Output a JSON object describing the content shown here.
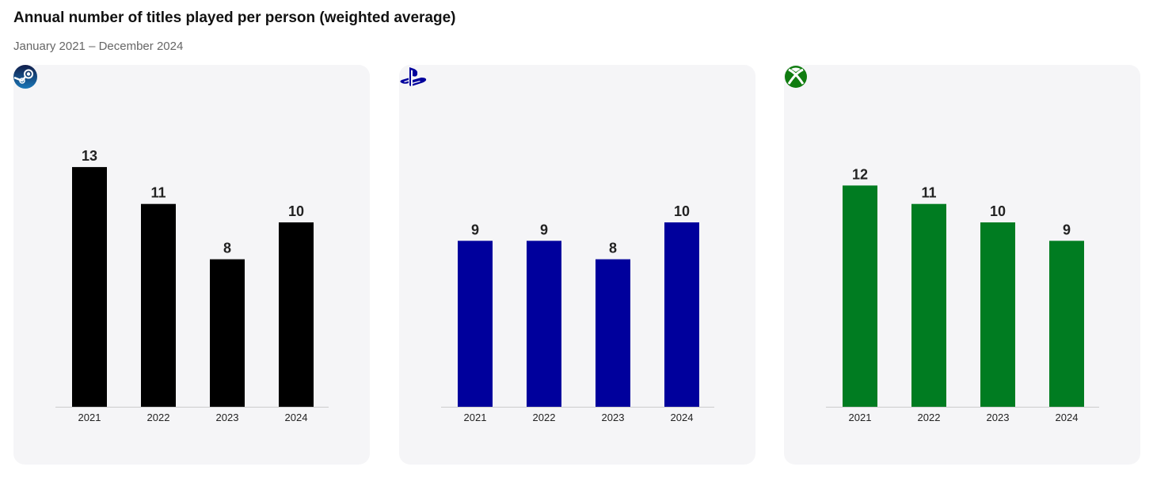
{
  "header": {
    "title": "Annual number of titles played per person (weighted average)",
    "subtitle": "January 2021 – December 2024"
  },
  "chart_data": [
    {
      "type": "bar",
      "platform_icon": "steam-icon",
      "color": "#000000",
      "categories": [
        "2021",
        "2022",
        "2023",
        "2024"
      ],
      "values": [
        13,
        11,
        8,
        10
      ],
      "ylim": [
        0,
        14
      ],
      "grid": false
    },
    {
      "type": "bar",
      "platform_icon": "playstation-icon",
      "color": "#00009c",
      "categories": [
        "2021",
        "2022",
        "2023",
        "2024"
      ],
      "values": [
        9,
        9,
        8,
        10
      ],
      "ylim": [
        0,
        14
      ],
      "grid": false
    },
    {
      "type": "bar",
      "platform_icon": "xbox-icon",
      "color": "#007c21",
      "categories": [
        "2021",
        "2022",
        "2023",
        "2024"
      ],
      "values": [
        12,
        11,
        10,
        9
      ],
      "ylim": [
        0,
        14
      ],
      "grid": false
    }
  ]
}
